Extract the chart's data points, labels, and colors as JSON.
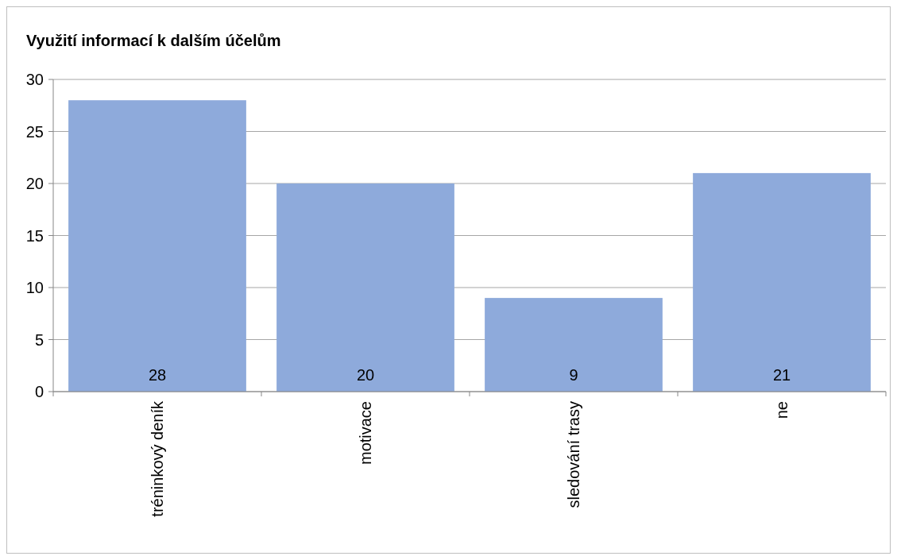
{
  "chart_data": {
    "type": "bar",
    "title": "Využití informací k dalším účelům",
    "categories": [
      "tréninkový deník",
      "motivace",
      "sledování trasy",
      "ne"
    ],
    "values": [
      28,
      20,
      9,
      21
    ],
    "color": "#8eaadb",
    "ylim": [
      0,
      30
    ],
    "yticks": [
      0,
      5,
      10,
      15,
      20,
      25,
      30
    ],
    "grid": "y",
    "data_labels": true
  }
}
